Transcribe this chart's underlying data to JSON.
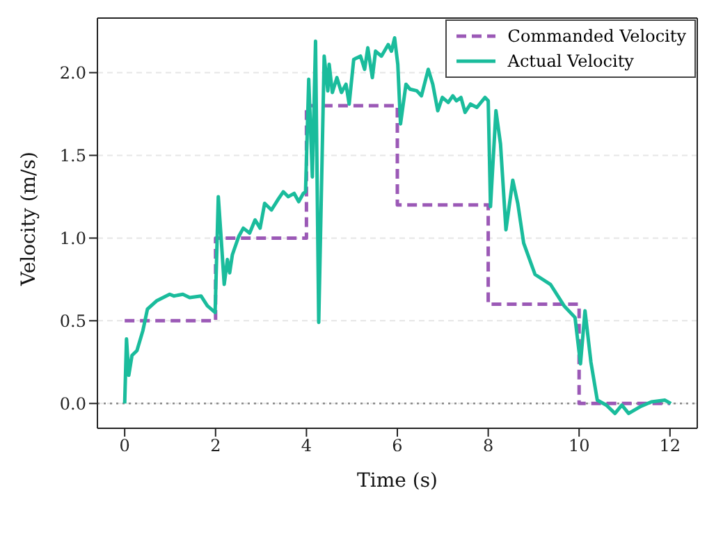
{
  "chart_data": {
    "type": "line",
    "xlabel": "Time (s)",
    "ylabel": "Velocity (m/s)",
    "xlim": [
      -0.6,
      12.6
    ],
    "ylim": [
      -0.15,
      2.33
    ],
    "xticks": [
      0,
      2,
      4,
      6,
      8,
      10,
      12
    ],
    "yticks": [
      {
        "value": 0,
        "label": "0.0"
      },
      {
        "value": 0.5,
        "label": "0.5"
      },
      {
        "value": 1,
        "label": "1.0"
      },
      {
        "value": 1.5,
        "label": "1.5"
      },
      {
        "value": 2,
        "label": "2.0"
      }
    ],
    "grid": "y",
    "legend": "top right",
    "marker": "none",
    "ref_lines": [
      {
        "axis": "y",
        "value": 0,
        "color": "#888888",
        "line_style": "dotted"
      }
    ],
    "series": [
      {
        "name": "Commanded Velocity",
        "type": "step",
        "color": "#9b59b6",
        "line_style": "dashed",
        "x": [
          0,
          2,
          4,
          6,
          8,
          10,
          12
        ],
        "values": [
          0.5,
          1.0,
          1.8,
          1.2,
          0.6,
          0.0,
          0.0
        ]
      },
      {
        "name": "Actual Velocity",
        "type": "line",
        "color": "#1abc9c",
        "line_style": "solid",
        "x": [
          0,
          0.04,
          0.09,
          0.16,
          0.27,
          0.4,
          0.5,
          0.7,
          0.99,
          1.08,
          1.28,
          1.43,
          1.68,
          1.82,
          1.95,
          1.99,
          2.06,
          2.12,
          2.19,
          2.26,
          2.31,
          2.37,
          2.51,
          2.61,
          2.75,
          2.87,
          2.98,
          3.08,
          3.23,
          3.39,
          3.49,
          3.6,
          3.73,
          3.83,
          3.93,
          3.98,
          4.05,
          4.13,
          4.2,
          4.27,
          4.39,
          4.47,
          4.5,
          4.57,
          4.67,
          4.77,
          4.87,
          4.94,
          5.04,
          5.19,
          5.28,
          5.35,
          5.45,
          5.52,
          5.65,
          5.8,
          5.87,
          5.94,
          6.01,
          6.07,
          6.19,
          6.28,
          6.43,
          6.53,
          6.68,
          6.78,
          6.89,
          6.99,
          7.12,
          7.22,
          7.3,
          7.4,
          7.49,
          7.61,
          7.75,
          7.93,
          8.0,
          8.05,
          8.17,
          8.27,
          8.39,
          8.54,
          8.65,
          8.78,
          9.03,
          9.37,
          9.67,
          9.91,
          10.03,
          10.13,
          10.26,
          10.4,
          10.6,
          10.79,
          10.94,
          11.09,
          11.34,
          11.59,
          11.89,
          12.02
        ],
        "values": [
          0,
          0.39,
          0.17,
          0.29,
          0.32,
          0.44,
          0.57,
          0.62,
          0.66,
          0.65,
          0.66,
          0.64,
          0.65,
          0.59,
          0.56,
          0.55,
          1.25,
          1.01,
          0.72,
          0.87,
          0.79,
          0.9,
          1.01,
          1.06,
          1.03,
          1.11,
          1.06,
          1.21,
          1.17,
          1.24,
          1.28,
          1.25,
          1.27,
          1.22,
          1.27,
          1.28,
          1.96,
          1.37,
          2.19,
          0.49,
          2.1,
          1.89,
          2.05,
          1.88,
          1.97,
          1.88,
          1.93,
          1.81,
          2.08,
          2.1,
          2.02,
          2.15,
          1.97,
          2.13,
          2.1,
          2.17,
          2.13,
          2.21,
          2.05,
          1.69,
          1.93,
          1.9,
          1.89,
          1.86,
          2.02,
          1.93,
          1.77,
          1.85,
          1.82,
          1.86,
          1.83,
          1.85,
          1.76,
          1.81,
          1.79,
          1.85,
          1.83,
          1.19,
          1.77,
          1.57,
          1.05,
          1.35,
          1.21,
          0.97,
          0.78,
          0.72,
          0.59,
          0.52,
          0.24,
          0.56,
          0.25,
          0.02,
          -0.01,
          -0.06,
          -0.01,
          -0.06,
          -0.02,
          0.01,
          0.02,
          0
        ]
      }
    ]
  }
}
